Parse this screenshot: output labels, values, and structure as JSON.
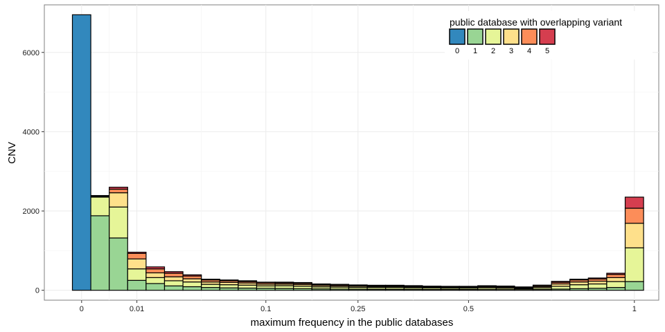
{
  "chart_data": {
    "type": "bar",
    "stacked": true,
    "xlabel": "maximum frequency in the public databases",
    "ylabel": "CNV",
    "ylim": [
      -250,
      7200
    ],
    "y_ticks": [
      0,
      2000,
      4000,
      6000
    ],
    "x_ticks": [
      {
        "bin": 0.5,
        "label": "0"
      },
      {
        "bin": 3.5,
        "label": "0.01"
      },
      {
        "bin": 10.5,
        "label": "0.1"
      },
      {
        "bin": 15.5,
        "label": "0.25"
      },
      {
        "bin": 21.5,
        "label": "0.5"
      },
      {
        "bin": 30.5,
        "label": "1"
      }
    ],
    "grid": true,
    "legend": {
      "title": "public database with overlapping variant",
      "position": "top-right",
      "items": [
        {
          "label": "0",
          "color": "#3288bd"
        },
        {
          "label": "1",
          "color": "#99d594"
        },
        {
          "label": "2",
          "color": "#e6f598"
        },
        {
          "label": "3",
          "color": "#fee08b"
        },
        {
          "label": "4",
          "color": "#fc8d59"
        },
        {
          "label": "5",
          "color": "#d53e4f"
        }
      ]
    },
    "series": [
      {
        "name": "0",
        "values": [
          6950,
          0,
          0,
          0,
          0,
          0,
          0,
          0,
          0,
          0,
          0,
          0,
          0,
          0,
          0,
          0,
          0,
          0,
          0,
          0,
          0,
          0,
          0,
          0,
          0,
          0,
          0,
          0,
          0,
          0,
          0
        ]
      },
      {
        "name": "1",
        "values": [
          0,
          1880,
          1320,
          250,
          170,
          110,
          90,
          70,
          60,
          55,
          50,
          45,
          40,
          35,
          30,
          28,
          25,
          25,
          22,
          20,
          20,
          20,
          18,
          15,
          15,
          20,
          30,
          40,
          50,
          70,
          220
        ]
      },
      {
        "name": "2",
        "values": [
          0,
          470,
          780,
          290,
          150,
          130,
          120,
          80,
          80,
          75,
          60,
          70,
          65,
          50,
          50,
          45,
          45,
          45,
          40,
          38,
          35,
          35,
          40,
          35,
          25,
          40,
          70,
          100,
          110,
          150,
          850
        ]
      },
      {
        "name": "3",
        "values": [
          0,
          20,
          360,
          250,
          120,
          100,
          80,
          60,
          60,
          55,
          45,
          40,
          40,
          35,
          30,
          30,
          25,
          25,
          25,
          22,
          20,
          20,
          25,
          25,
          20,
          30,
          60,
          70,
          70,
          100,
          620
        ]
      },
      {
        "name": "4",
        "values": [
          0,
          0,
          90,
          140,
          100,
          90,
          70,
          50,
          40,
          35,
          35,
          30,
          30,
          25,
          25,
          20,
          20,
          20,
          20,
          15,
          15,
          15,
          20,
          20,
          15,
          25,
          40,
          50,
          55,
          80,
          380
        ]
      },
      {
        "name": "5",
        "values": [
          0,
          20,
          50,
          30,
          50,
          40,
          30,
          20,
          20,
          20,
          15,
          20,
          20,
          15,
          15,
          12,
          12,
          12,
          10,
          10,
          10,
          10,
          12,
          12,
          10,
          15,
          25,
          20,
          25,
          30,
          280
        ]
      }
    ]
  }
}
